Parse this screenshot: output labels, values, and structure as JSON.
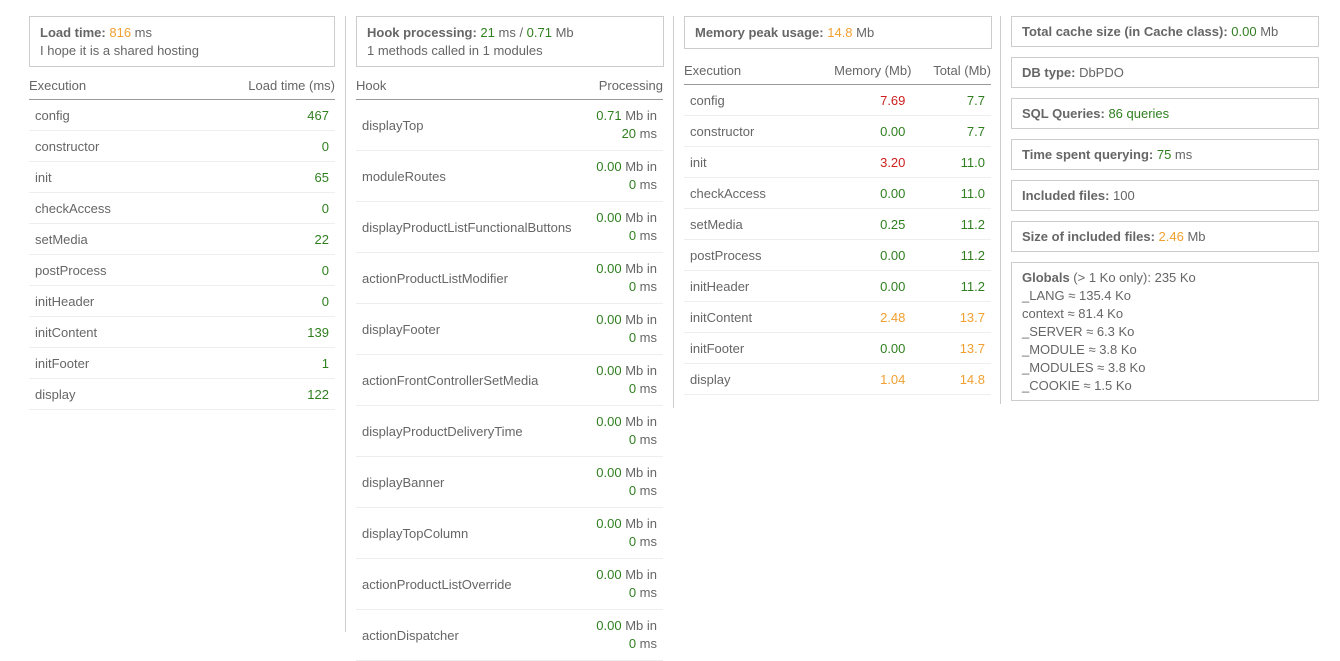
{
  "load": {
    "title": "Load time:",
    "value": "816",
    "unit": " ms",
    "note": "I hope it is a shared hosting",
    "headers": [
      "Execution",
      "Load time (ms)"
    ],
    "rows": [
      {
        "name": "config",
        "value": "467"
      },
      {
        "name": "constructor",
        "value": "0"
      },
      {
        "name": "init",
        "value": "65"
      },
      {
        "name": "checkAccess",
        "value": "0"
      },
      {
        "name": "setMedia",
        "value": "22"
      },
      {
        "name": "postProcess",
        "value": "0"
      },
      {
        "name": "initHeader",
        "value": "0"
      },
      {
        "name": "initContent",
        "value": "139"
      },
      {
        "name": "initFooter",
        "value": "1"
      },
      {
        "name": "display",
        "value": "122"
      }
    ]
  },
  "hooks": {
    "title": "Hook processing:",
    "time": "21",
    "time_unit": " ms / ",
    "mem": "0.71",
    "mem_unit": " Mb",
    "note": "1 methods called in 1 modules",
    "headers": [
      "Hook",
      "Processing"
    ],
    "rows": [
      {
        "name": "displayTop",
        "mem": "0.71",
        "time": "20"
      },
      {
        "name": "moduleRoutes",
        "mem": "0.00",
        "time": "0"
      },
      {
        "name": "displayProductListFunctionalButtons",
        "mem": "0.00",
        "time": "0"
      },
      {
        "name": "actionProductListModifier",
        "mem": "0.00",
        "time": "0"
      },
      {
        "name": "displayFooter",
        "mem": "0.00",
        "time": "0"
      },
      {
        "name": "actionFrontControllerSetMedia",
        "mem": "0.00",
        "time": "0"
      },
      {
        "name": "displayProductDeliveryTime",
        "mem": "0.00",
        "time": "0"
      },
      {
        "name": "displayBanner",
        "mem": "0.00",
        "time": "0"
      },
      {
        "name": "displayTopColumn",
        "mem": "0.00",
        "time": "0"
      },
      {
        "name": "actionProductListOverride",
        "mem": "0.00",
        "time": "0"
      },
      {
        "name": "actionDispatcher",
        "mem": "0.00",
        "time": "0"
      }
    ],
    "mb_in": " Mb in",
    "ms": " ms"
  },
  "memory": {
    "title": "Memory peak usage:",
    "value": "14.8",
    "unit": " Mb",
    "headers": [
      "Execution",
      "Memory (Mb)",
      "Total (Mb)"
    ],
    "rows": [
      {
        "name": "config",
        "mem": "7.69",
        "mem_color": "red",
        "total": "7.7",
        "total_color": "green"
      },
      {
        "name": "constructor",
        "mem": "0.00",
        "mem_color": "green",
        "total": "7.7",
        "total_color": "green"
      },
      {
        "name": "init",
        "mem": "3.20",
        "mem_color": "red",
        "total": "11.0",
        "total_color": "green"
      },
      {
        "name": "checkAccess",
        "mem": "0.00",
        "mem_color": "green",
        "total": "11.0",
        "total_color": "green"
      },
      {
        "name": "setMedia",
        "mem": "0.25",
        "mem_color": "green",
        "total": "11.2",
        "total_color": "green"
      },
      {
        "name": "postProcess",
        "mem": "0.00",
        "mem_color": "green",
        "total": "11.2",
        "total_color": "green"
      },
      {
        "name": "initHeader",
        "mem": "0.00",
        "mem_color": "green",
        "total": "11.2",
        "total_color": "green"
      },
      {
        "name": "initContent",
        "mem": "2.48",
        "mem_color": "orange",
        "total": "13.7",
        "total_color": "orange"
      },
      {
        "name": "initFooter",
        "mem": "0.00",
        "mem_color": "green",
        "total": "13.7",
        "total_color": "orange"
      },
      {
        "name": "display",
        "mem": "1.04",
        "mem_color": "orange",
        "total": "14.8",
        "total_color": "orange"
      }
    ]
  },
  "summary": {
    "cache_label": "Total cache size (in Cache class):",
    "cache_value": "0.00",
    "cache_unit": " Mb",
    "db_label": "DB type:",
    "db_value": " DbPDO",
    "sql_label": "SQL Queries:",
    "sql_value": " 86 queries",
    "time_label": "Time spent querying:",
    "time_value": " 75",
    "time_unit": " ms",
    "files_label": "Included files:",
    "files_value": " 100",
    "size_label": "Size of included files:",
    "size_value": " 2.46",
    "size_unit": " Mb",
    "globals_label": "Globals",
    "globals_suffix": " (> 1 Ko only): 235 Ko",
    "globals": [
      "_LANG ≈ 135.4 Ko",
      "context ≈ 81.4 Ko",
      "_SERVER ≈ 6.3 Ko",
      "_MODULE ≈ 3.8 Ko",
      "_MODULES ≈ 3.8 Ko",
      "_COOKIE ≈ 1.5 Ko"
    ]
  },
  "colors": {
    "orange": "#f0a030",
    "green": "#2f7f1f",
    "red": "#cc1f1f",
    "text": "#666666",
    "border": "#cccccc"
  }
}
